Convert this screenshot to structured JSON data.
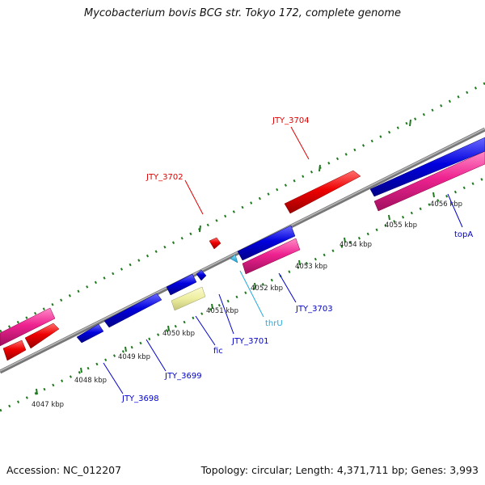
{
  "title": "Mycobacterium bovis BCG str. Tokyo 172, complete genome",
  "footer": {
    "accession": "Accession: NC_012207",
    "summary": "Topology: circular; Length: 4,371,711 bp; Genes: 3,993"
  },
  "colors": {
    "backbone": "#888888",
    "tick": "#1e7a1e",
    "cds_plus_red": "#ee0000",
    "cds_minus_blue": "#0000dd",
    "pink": "#ee2290",
    "trna_cyan": "#22bbee",
    "pale_yellow": "#eeeea0",
    "label_red": "#dd0000",
    "label_blue": "#0000cc",
    "label_cyan": "#22aadd"
  },
  "scale": {
    "labels": [
      "4047 kbp",
      "4048 kbp",
      "4049 kbp",
      "4050 kbp",
      "4051 kbp",
      "4052 kbp",
      "4053 kbp",
      "4054 kbp",
      "4055 kbp",
      "4056 kbp"
    ]
  },
  "gene_labels": [
    {
      "text": "JTY_3704",
      "color": "red"
    },
    {
      "text": "JTY_3702",
      "color": "red"
    },
    {
      "text": "topA",
      "color": "blue"
    },
    {
      "text": "JTY_3703",
      "color": "blue"
    },
    {
      "text": "thrU",
      "color": "cyan"
    },
    {
      "text": "JTY_3701",
      "color": "blue"
    },
    {
      "text": "fic",
      "color": "blue"
    },
    {
      "text": "JTY_3699",
      "color": "blue"
    },
    {
      "text": "JTY_3698",
      "color": "blue"
    }
  ]
}
